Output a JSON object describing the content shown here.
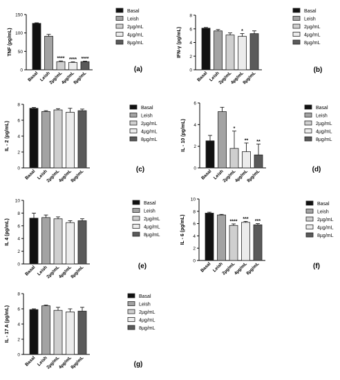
{
  "categories": [
    "Basal",
    "Leish",
    "2µg/mL",
    "4µg/mL",
    "8µg/mL"
  ],
  "legend_colors": [
    "#111111",
    "#a3a3a3",
    "#cfcfcf",
    "#ececec",
    "#5a5a5a"
  ],
  "chart_data": [
    {
      "type": "bar",
      "panel_label": "(a)",
      "ylabel": "TNF (pg/mL)",
      "ylim": [
        0,
        150
      ],
      "yticks": [
        "0",
        "50",
        "100",
        "150"
      ],
      "ytick_values": [
        0,
        50,
        100,
        150
      ],
      "categories": [
        "Basal",
        "Leish",
        "2µg/mL",
        "4µg/mL",
        "8µg/mL"
      ],
      "values": [
        126,
        91,
        22,
        20,
        22
      ],
      "errors": [
        1.5,
        5,
        2,
        1.5,
        1.5
      ],
      "significance": [
        "",
        "",
        "****",
        "****",
        "****"
      ],
      "legend": [
        "Basal",
        "Leish",
        "2µg/mL",
        "4µg/mL",
        "8µg/mL"
      ]
    },
    {
      "type": "bar",
      "panel_label": "(b)",
      "ylabel": "IFN-γ (pg/mL)",
      "ylim": [
        0,
        8
      ],
      "yticks": [
        "0",
        "2",
        "4",
        "6",
        "8"
      ],
      "ytick_values": [
        0,
        2,
        4,
        6,
        8
      ],
      "categories": [
        "Basal",
        "Leish",
        "2µg/mL",
        "4µg/mL",
        "8µg/mL"
      ],
      "values": [
        6.1,
        5.7,
        5.1,
        4.9,
        5.3
      ],
      "errors": [
        0.1,
        0.2,
        0.3,
        0.4,
        0.4
      ],
      "significance": [
        "",
        "",
        "",
        "*",
        ""
      ],
      "legend": [
        "Basal",
        "Leish",
        "2µg/mL",
        "4µg/mL",
        "8µg/mL"
      ]
    },
    {
      "type": "bar",
      "panel_label": "(c)",
      "ylabel": "IL - 2 (pg/mL)",
      "ylim": [
        0,
        8
      ],
      "yticks": [
        "0",
        "2",
        "4",
        "6",
        "8"
      ],
      "ytick_values": [
        0,
        2,
        4,
        6,
        8
      ],
      "categories": [
        "Basal",
        "Leish",
        "2µg/mL",
        "4µg/mL",
        "8µg/mL"
      ],
      "values": [
        7.5,
        7.1,
        7.3,
        7.0,
        7.2
      ],
      "errors": [
        0.1,
        0.1,
        0.15,
        0.5,
        0.2
      ],
      "significance": [
        "",
        "",
        "",
        "",
        ""
      ],
      "legend": [
        "Basal",
        "Leish",
        "2µg/mL",
        "4µg/mL",
        "8µg/mL"
      ]
    },
    {
      "type": "bar",
      "panel_label": "(d)",
      "ylabel": "IL - 10 (pg/mL)",
      "ylim": [
        0,
        6
      ],
      "yticks": [
        "0",
        "2",
        "4",
        "6"
      ],
      "ytick_values": [
        0,
        2,
        4,
        6
      ],
      "categories": [
        "Basal",
        "Leish",
        "2µg/mL",
        "4µg/mL",
        "8µg/mL"
      ],
      "values": [
        2.5,
        5.2,
        1.8,
        1.5,
        1.2
      ],
      "errors": [
        0.5,
        0.4,
        1.6,
        0.8,
        1.0
      ],
      "significance": [
        "",
        "",
        "*",
        "**",
        "**"
      ],
      "legend": [
        "Basal",
        "Leish",
        "2µg/mL",
        "4µg/mL",
        "8µg/mL"
      ]
    },
    {
      "type": "bar",
      "panel_label": "(e)",
      "ylabel": "IL 4 (pg/mL)",
      "ylim": [
        0,
        10
      ],
      "yticks": [
        "0",
        "2",
        "4",
        "6",
        "8",
        "10"
      ],
      "ytick_values": [
        0,
        2,
        4,
        6,
        8,
        10
      ],
      "categories": [
        "Basal",
        "Leish",
        "2µg/mL",
        "4µg/mL",
        "8µg/mL"
      ],
      "values": [
        7.2,
        7.3,
        7.1,
        6.5,
        6.8
      ],
      "errors": [
        0.8,
        0.4,
        0.3,
        0.3,
        0.3
      ],
      "significance": [
        "",
        "",
        "",
        "",
        ""
      ],
      "legend": [
        "Basal",
        "Leish",
        "2µg/mL",
        "4µg/mL",
        "8µg/mL"
      ]
    },
    {
      "type": "bar",
      "panel_label": "(f)",
      "ylabel": "IL - 6 (pg/mL)",
      "ylim": [
        0,
        10
      ],
      "yticks": [
        "0",
        "2",
        "4",
        "6",
        "8",
        "10"
      ],
      "ytick_values": [
        0,
        2,
        4,
        6,
        8,
        10
      ],
      "categories": [
        "Basal",
        "Leish",
        "2µg/mL",
        "4µg/mL",
        "8µg/mL"
      ],
      "values": [
        7.7,
        7.4,
        5.7,
        6.2,
        5.8
      ],
      "errors": [
        0.15,
        0.1,
        0.25,
        0.15,
        0.2
      ],
      "significance": [
        "",
        "",
        "****",
        "***",
        "***"
      ],
      "legend": [
        "Basal",
        "Leish",
        "2µg/mL",
        "4µg/mL",
        "8µg/mL"
      ]
    },
    {
      "type": "bar",
      "panel_label": "(g)",
      "ylabel": "IL - 17 A (pg/mL)",
      "ylim": [
        0,
        8
      ],
      "yticks": [
        "0",
        "2",
        "4",
        "6",
        "8"
      ],
      "ytick_values": [
        0,
        2,
        4,
        6,
        8
      ],
      "categories": [
        "Basal",
        "Leish",
        "2µg/mL",
        "4µg/mL",
        "8µg/mL"
      ],
      "values": [
        5.9,
        6.4,
        5.8,
        5.6,
        5.7
      ],
      "errors": [
        0.1,
        0.1,
        0.4,
        0.4,
        0.5
      ],
      "significance": [
        "",
        "",
        "",
        "",
        ""
      ],
      "legend": [
        "Basal",
        "Leish",
        "2µg/mL",
        "4µg/mL",
        "8µg/mL"
      ]
    }
  ]
}
